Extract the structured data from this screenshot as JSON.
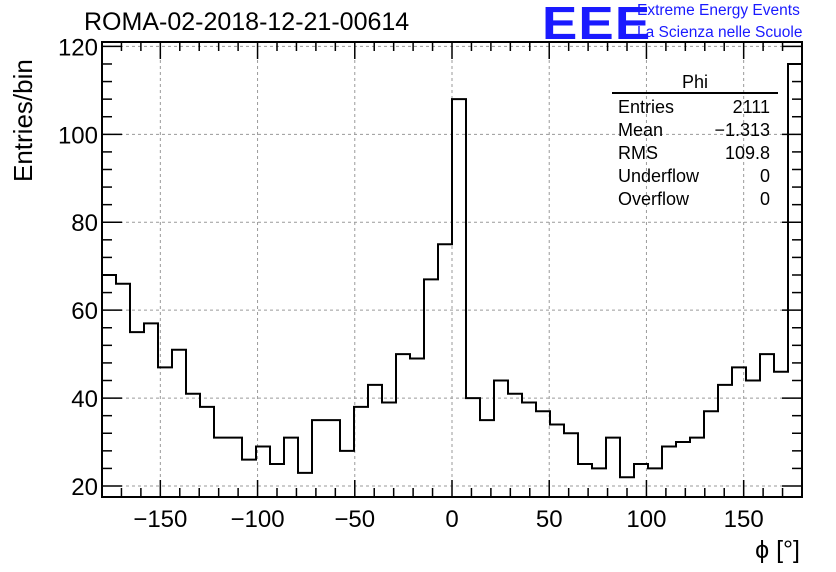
{
  "title": "ROMA-02-2018-12-21-00614",
  "logo": {
    "mark": "EEE",
    "line1": "Extreme Energy Events",
    "line2": "La Scienza nelle Scuole",
    "color": "#1a1aff"
  },
  "stats_box": {
    "name": "Phi",
    "rows": [
      {
        "label": "Entries",
        "value": "2111"
      },
      {
        "label": "Mean",
        "value": "−1.313"
      },
      {
        "label": "RMS",
        "value": "109.8"
      },
      {
        "label": "Underflow",
        "value": "0"
      },
      {
        "label": "Overflow",
        "value": "0"
      }
    ]
  },
  "chart_data": {
    "type": "histogram",
    "xlabel": "ϕ [°]",
    "ylabel": "Entries/bin",
    "xlim": [
      -180,
      180
    ],
    "ylim": [
      17.5,
      121
    ],
    "bin_width": 7.2,
    "xticks": [
      -150,
      -100,
      -50,
      0,
      50,
      100,
      150
    ],
    "yticks": [
      20,
      40,
      60,
      80,
      100,
      120
    ],
    "grid": true,
    "line_color": "#000000",
    "values": [
      68,
      66,
      55,
      57,
      47,
      51,
      41,
      38,
      31,
      31,
      26,
      29,
      25,
      31,
      23,
      35,
      35,
      28,
      38,
      43,
      39,
      50,
      49,
      67,
      75,
      108,
      40,
      35,
      44,
      41,
      39,
      37,
      34,
      32,
      25,
      24,
      31,
      22,
      25,
      24,
      29,
      30,
      31,
      37,
      43,
      47,
      44,
      50,
      46,
      116
    ]
  }
}
